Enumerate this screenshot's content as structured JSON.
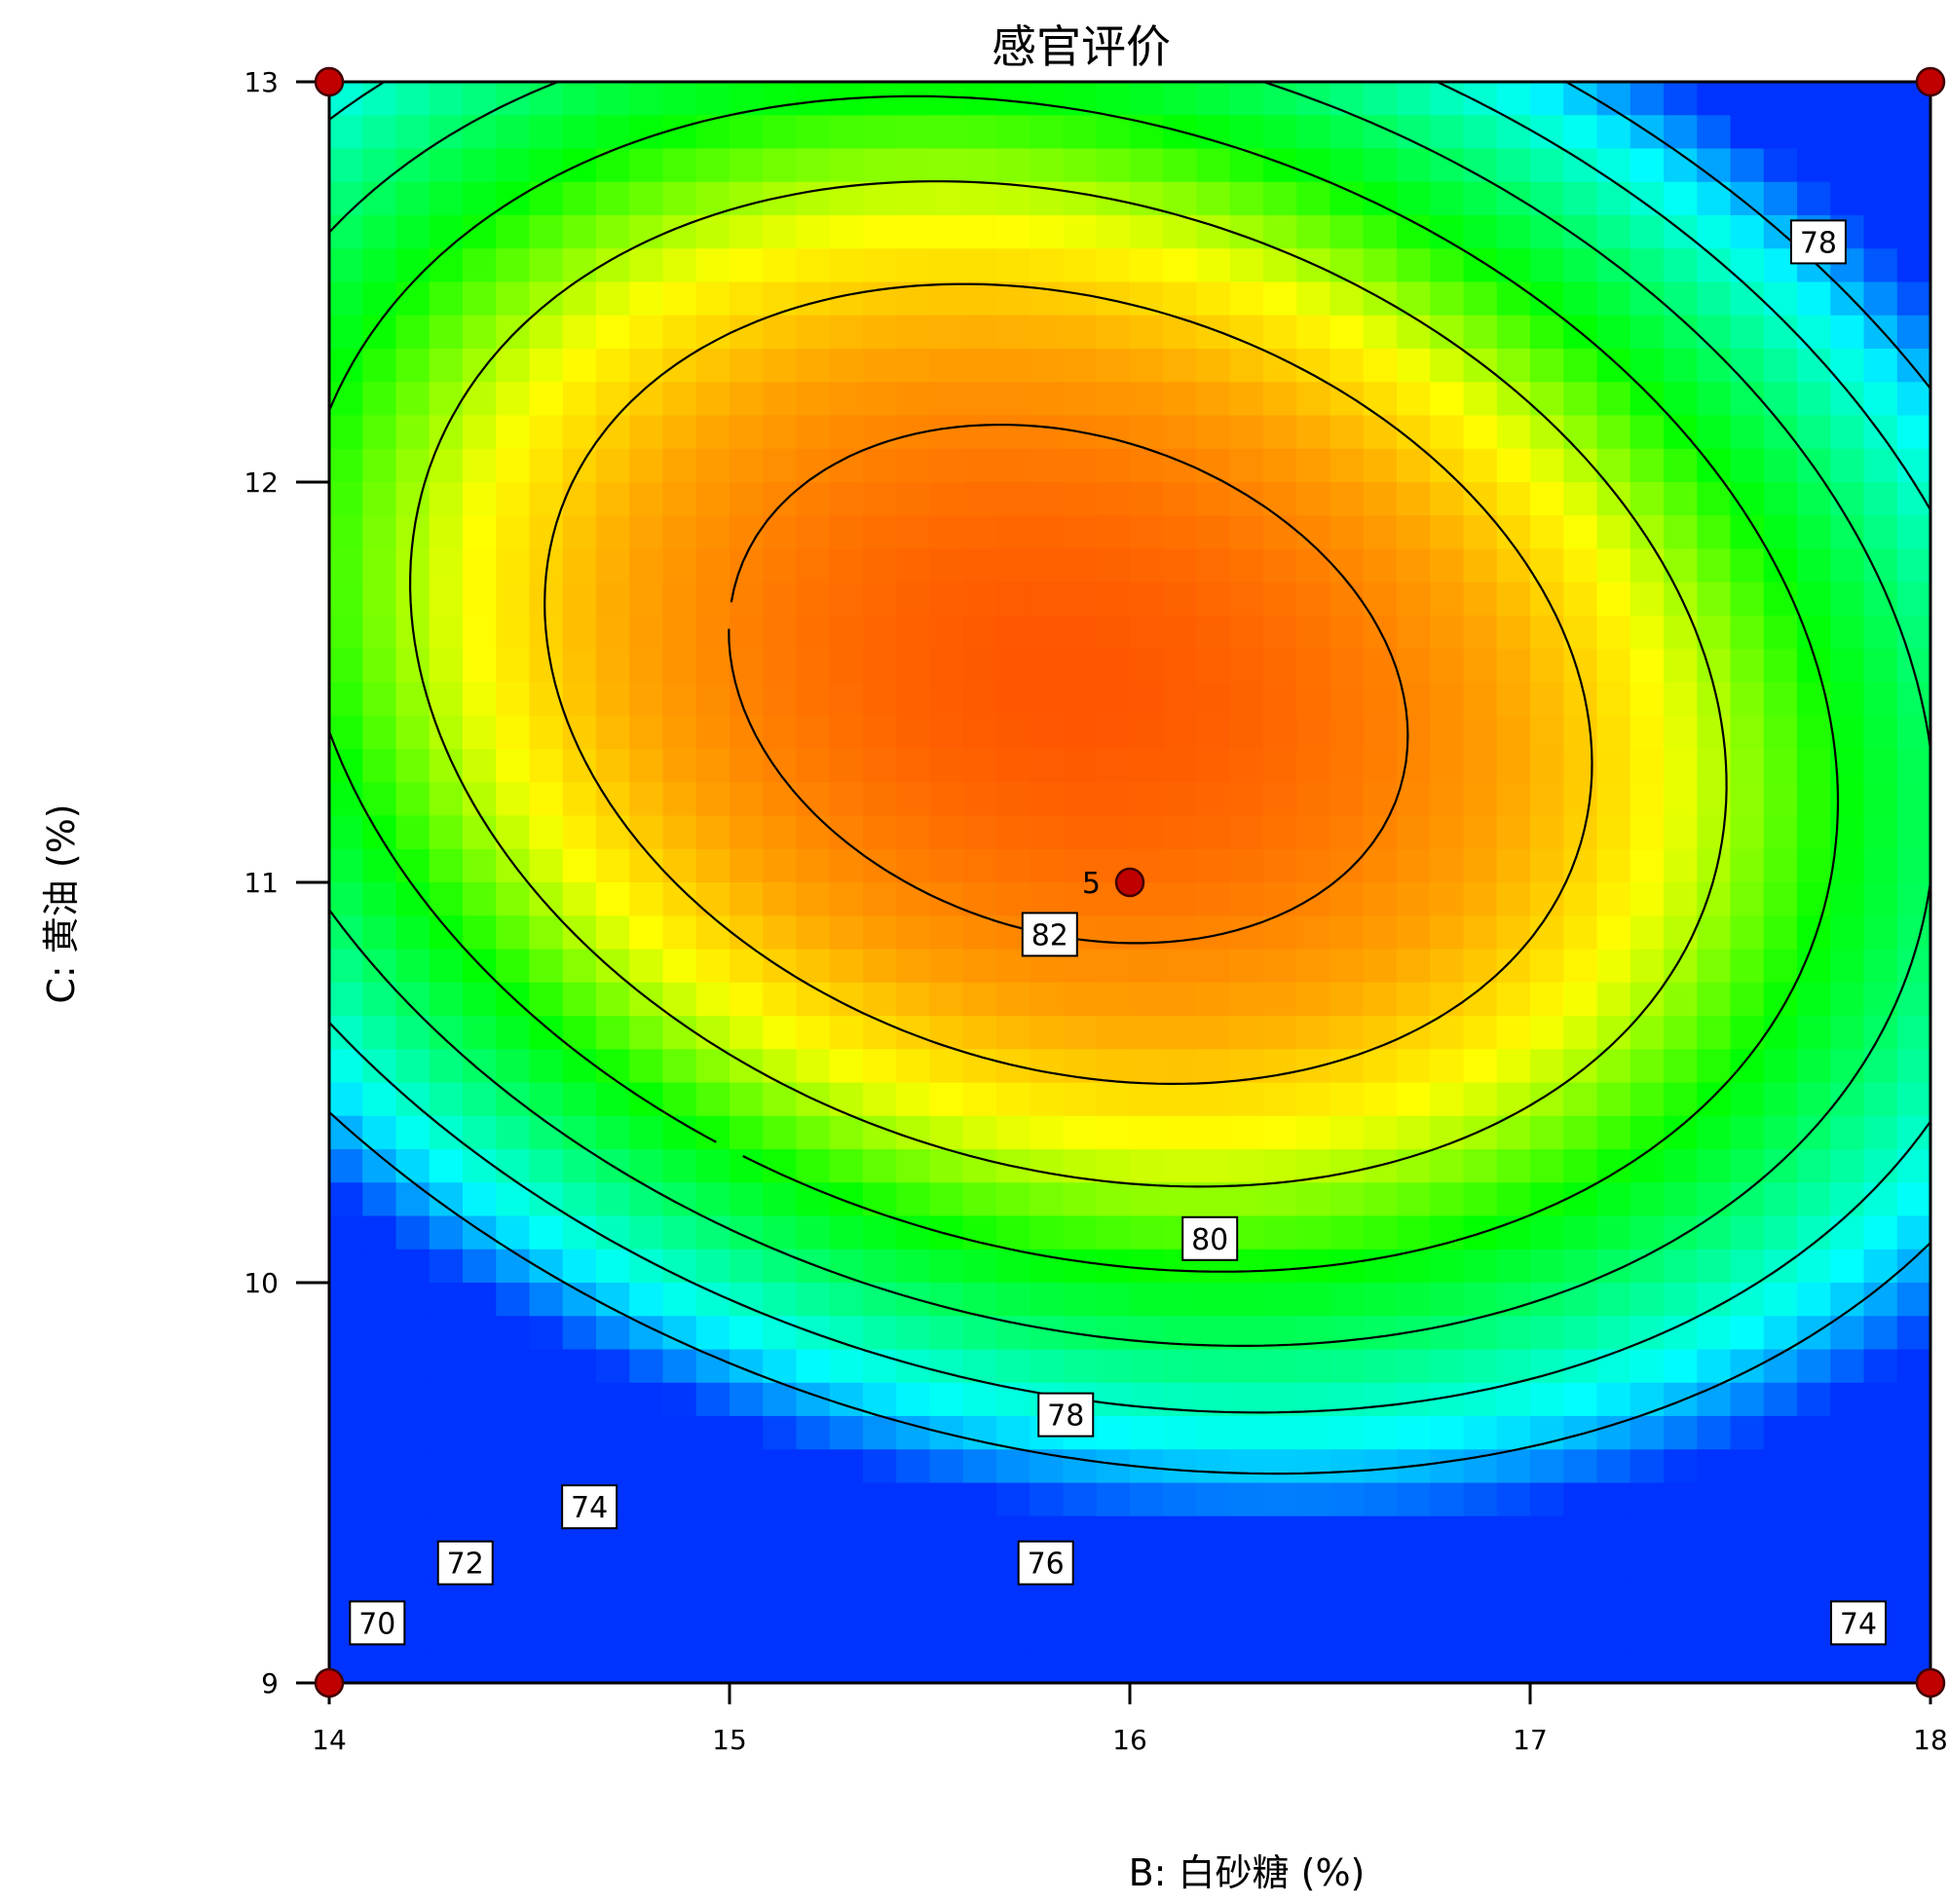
{
  "chart_data": {
    "type": "contour",
    "title": "感官评价",
    "xlabel": "B: 白砂糖 (%)",
    "ylabel": "C: 黄油 (%)",
    "xlim": [
      14,
      18
    ],
    "ylim": [
      9,
      13
    ],
    "x_ticks": [
      "14",
      "15",
      "16",
      "17",
      "18"
    ],
    "y_ticks": [
      "9",
      "10",
      "11",
      "12",
      "13"
    ],
    "contour_levels": [
      70,
      72,
      74,
      76,
      78,
      80,
      82
    ],
    "contour_labels": [
      {
        "text": "70",
        "x": 14.12,
        "y": 9.15
      },
      {
        "text": "72",
        "x": 14.34,
        "y": 9.3
      },
      {
        "text": "74",
        "x": 14.65,
        "y": 9.44
      },
      {
        "text": "76",
        "x": 15.79,
        "y": 9.3
      },
      {
        "text": "78",
        "x": 15.84,
        "y": 9.67
      },
      {
        "text": "80",
        "x": 16.2,
        "y": 10.11
      },
      {
        "text": "82",
        "x": 15.8,
        "y": 10.87
      },
      {
        "text": "78",
        "x": 17.72,
        "y": 12.6
      },
      {
        "text": "74",
        "x": 17.82,
        "y": 9.15
      }
    ],
    "design_points": [
      {
        "x": 14,
        "y": 13
      },
      {
        "x": 18,
        "y": 13
      },
      {
        "x": 14,
        "y": 9
      },
      {
        "x": 18,
        "y": 9
      },
      {
        "x": 16,
        "y": 11,
        "label": "5"
      }
    ],
    "color_scale": [
      "#0033ff",
      "#00ffff",
      "#00ff00",
      "#ffff00",
      "#ffa500",
      "#ff4400"
    ],
    "grid": false,
    "legend": "none"
  }
}
